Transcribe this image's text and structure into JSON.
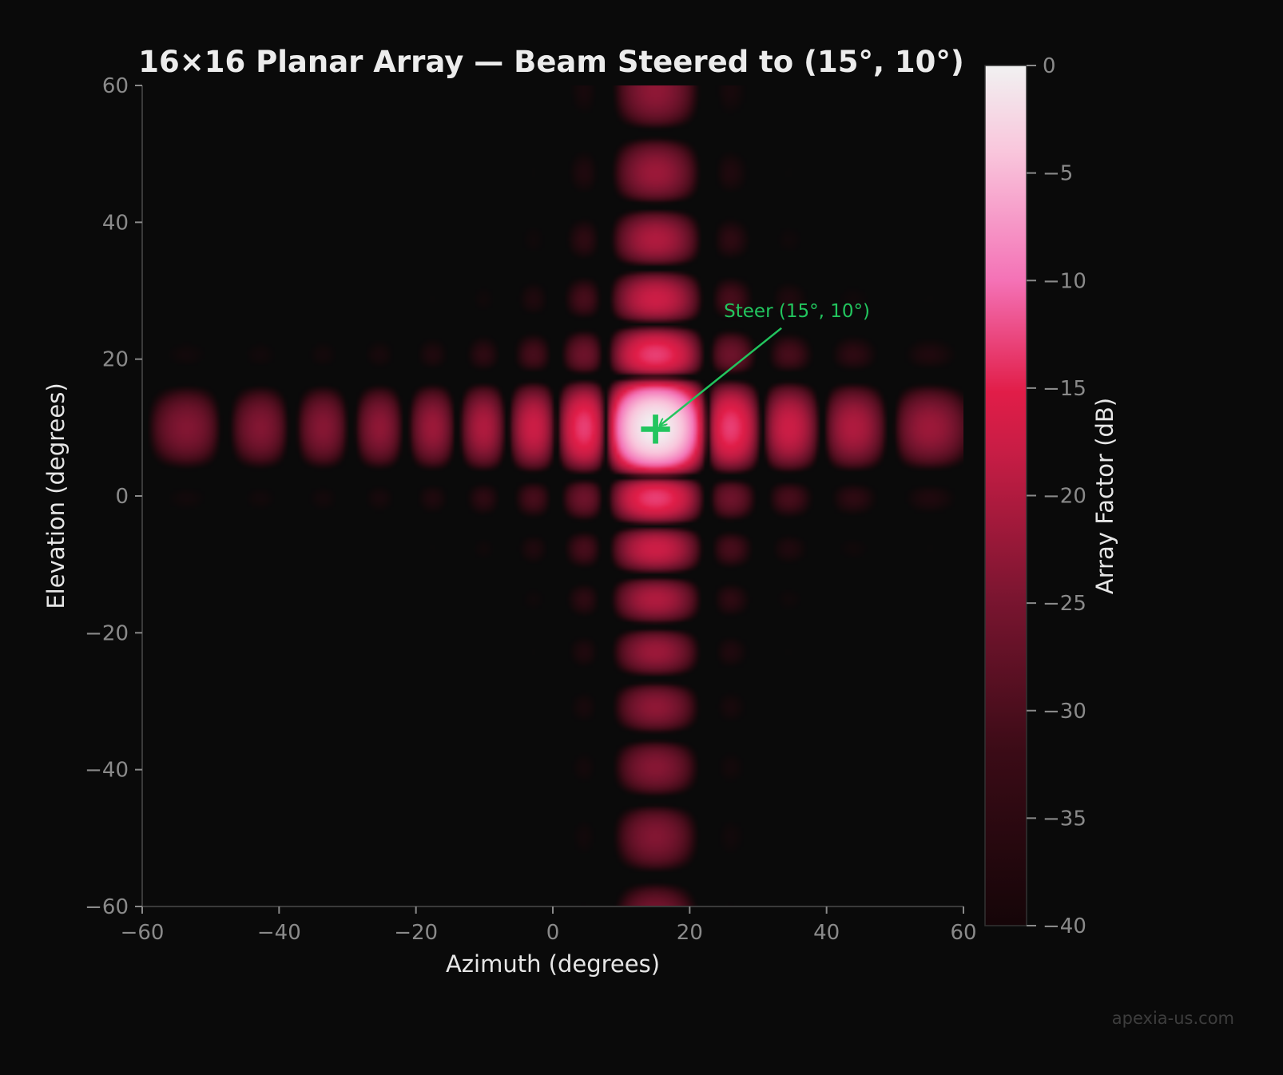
{
  "chart_data": {
    "type": "heatmap",
    "title": "16×16 Planar Array — Beam Steered to (15°, 10°)",
    "xlabel": "Azimuth (degrees)",
    "ylabel": "Elevation (degrees)",
    "xlim": [
      -60,
      60
    ],
    "ylim": [
      -60,
      60
    ],
    "xticks": [
      -60,
      -40,
      -20,
      0,
      20,
      40,
      60
    ],
    "yticks": [
      -60,
      -40,
      -20,
      0,
      20,
      40,
      60
    ],
    "xtick_labels": [
      "−60",
      "−40",
      "−20",
      "0",
      "20",
      "40",
      "60"
    ],
    "ytick_labels": [
      "−60",
      "−40",
      "−20",
      "0",
      "20",
      "40",
      "60"
    ],
    "array_size": [
      16,
      16
    ],
    "steer": {
      "azimuth": 15,
      "elevation": 10
    },
    "colorbar": {
      "label": "Array Factor (dB)",
      "range": [
        -40,
        0
      ],
      "ticks": [
        0,
        -5,
        -10,
        -15,
        -20,
        -25,
        -30,
        -35,
        -40
      ],
      "tick_labels": [
        "0",
        "−5",
        "−10",
        "−15",
        "−20",
        "−25",
        "−30",
        "−35",
        "−40"
      ],
      "colors": [
        "#150508",
        "#3a0b16",
        "#7a1530",
        "#c71d45",
        "#e11d48",
        "#f472b6",
        "#f9c6dc",
        "#f1f1f1"
      ]
    },
    "annotation": {
      "text": "Steer (15°, 10°)",
      "point": [
        15,
        10
      ],
      "text_position": [
        25,
        25
      ],
      "marker": "+",
      "color": "#22c55e"
    },
    "grid": false
  },
  "watermark": "apexia-us.com"
}
